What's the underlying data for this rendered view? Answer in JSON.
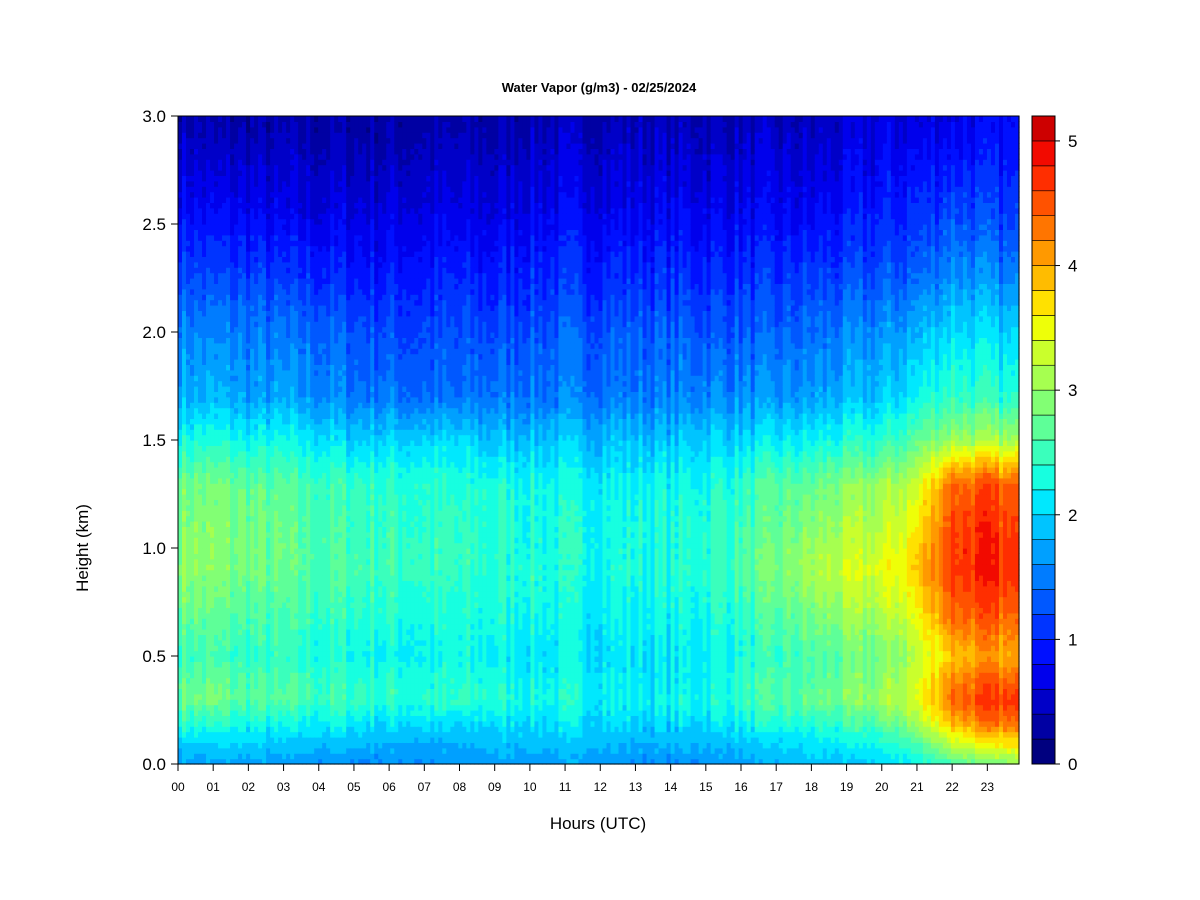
{
  "chart_data": {
    "type": "heatmap",
    "title": "Water Vapor (g/m3) - 02/25/2024",
    "xlabel": "Hours (UTC)",
    "ylabel": "Height (km)",
    "x_ticks": [
      "00",
      "01",
      "02",
      "03",
      "04",
      "05",
      "06",
      "07",
      "08",
      "09",
      "10",
      "11",
      "12",
      "13",
      "14",
      "15",
      "16",
      "17",
      "18",
      "19",
      "20",
      "21",
      "22",
      "23"
    ],
    "y_ticks": [
      "0.0",
      "0.5",
      "1.0",
      "1.5",
      "2.0",
      "2.5",
      "3.0"
    ],
    "xlim": [
      0,
      23.9
    ],
    "ylim": [
      0,
      3.0
    ],
    "colorbar": {
      "range": [
        0,
        5.2
      ],
      "step": 0.2,
      "tick_labels": [
        "0",
        "1",
        "2",
        "3",
        "4",
        "5"
      ],
      "colors": [
        "#00007f",
        "#0000a3",
        "#0000c8",
        "#0000ec",
        "#0010ff",
        "#0034ff",
        "#0058ff",
        "#007cff",
        "#00a0ff",
        "#00c4ff",
        "#00e8fe",
        "#17ffe0",
        "#3affbc",
        "#5eff98",
        "#82ff74",
        "#a6ff50",
        "#caff2c",
        "#eeff08",
        "#ffe100",
        "#ffbc00",
        "#ff9900",
        "#ff7500",
        "#ff5200",
        "#ff2e00",
        "#f20a00",
        "#cd0000",
        "#a80000"
      ]
    },
    "hours": [
      0,
      1,
      2,
      3,
      4,
      5,
      6,
      7,
      8,
      9,
      10,
      11,
      12,
      13,
      14,
      15,
      16,
      17,
      18,
      19,
      20,
      21,
      22,
      23,
      23.9
    ],
    "heights_km": [
      0.0,
      0.1,
      0.2,
      0.3,
      0.4,
      0.5,
      0.7,
      0.9,
      1.1,
      1.3,
      1.5,
      1.7,
      2.0,
      2.3,
      2.6,
      3.0
    ],
    "values": [
      [
        1.7,
        1.7,
        1.7,
        1.7,
        1.6,
        1.6,
        1.6,
        1.6,
        1.6,
        1.7,
        1.7,
        1.7,
        1.7,
        1.6,
        1.6,
        1.6,
        1.7,
        1.8,
        1.9,
        1.9,
        2.0,
        2.2,
        2.6,
        2.8,
        2.9
      ],
      [
        2.0,
        2.0,
        2.0,
        1.9,
        1.9,
        1.9,
        1.8,
        1.8,
        1.8,
        1.9,
        1.9,
        1.9,
        1.9,
        1.8,
        1.8,
        1.9,
        1.9,
        2.0,
        2.1,
        2.2,
        2.3,
        2.6,
        3.3,
        3.6,
        3.7
      ],
      [
        2.4,
        2.4,
        2.3,
        2.2,
        2.2,
        2.2,
        2.1,
        2.1,
        2.0,
        2.1,
        2.1,
        2.1,
        2.1,
        2.0,
        2.0,
        2.1,
        2.2,
        2.3,
        2.4,
        2.5,
        2.7,
        3.1,
        4.0,
        4.3,
        4.3
      ],
      [
        2.8,
        2.8,
        2.6,
        2.6,
        2.5,
        2.5,
        2.4,
        2.4,
        2.4,
        2.4,
        2.3,
        2.3,
        2.2,
        2.2,
        2.2,
        2.3,
        2.4,
        2.6,
        2.7,
        2.8,
        3.0,
        3.4,
        4.4,
        4.6,
        4.6
      ],
      [
        2.7,
        2.7,
        2.6,
        2.5,
        2.5,
        2.4,
        2.4,
        2.3,
        2.3,
        2.3,
        2.2,
        2.2,
        2.2,
        2.1,
        2.1,
        2.2,
        2.4,
        2.5,
        2.6,
        2.8,
        2.9,
        3.3,
        4.2,
        4.4,
        4.3
      ],
      [
        2.5,
        2.5,
        2.4,
        2.4,
        2.3,
        2.3,
        2.2,
        2.2,
        2.2,
        2.2,
        2.1,
        2.1,
        2.1,
        2.1,
        2.1,
        2.2,
        2.3,
        2.4,
        2.6,
        2.7,
        2.8,
        3.2,
        3.9,
        4.0,
        3.9
      ],
      [
        2.8,
        2.7,
        2.6,
        2.5,
        2.5,
        2.4,
        2.4,
        2.3,
        2.3,
        2.3,
        2.3,
        2.2,
        2.2,
        2.2,
        2.2,
        2.3,
        2.4,
        2.6,
        2.8,
        3.0,
        3.1,
        3.5,
        4.4,
        4.5,
        4.3
      ],
      [
        3.0,
        2.9,
        2.8,
        2.7,
        2.6,
        2.6,
        2.5,
        2.5,
        2.4,
        2.4,
        2.4,
        2.3,
        2.3,
        2.3,
        2.3,
        2.4,
        2.6,
        2.8,
        3.1,
        3.3,
        3.4,
        3.8,
        4.7,
        4.8,
        4.6
      ],
      [
        2.9,
        2.9,
        2.8,
        2.7,
        2.6,
        2.5,
        2.5,
        2.4,
        2.4,
        2.4,
        2.3,
        2.3,
        2.3,
        2.3,
        2.3,
        2.4,
        2.5,
        2.7,
        2.9,
        3.1,
        3.2,
        3.6,
        4.6,
        4.7,
        4.5
      ],
      [
        2.8,
        2.8,
        2.7,
        2.6,
        2.5,
        2.5,
        2.4,
        2.4,
        2.3,
        2.3,
        2.3,
        2.2,
        2.2,
        2.2,
        2.2,
        2.3,
        2.4,
        2.6,
        2.7,
        2.9,
        3.0,
        3.3,
        4.4,
        4.5,
        4.3
      ],
      [
        2.3,
        2.3,
        2.2,
        2.2,
        2.1,
        2.0,
        2.0,
        2.0,
        2.0,
        1.9,
        1.9,
        1.9,
        1.9,
        1.9,
        1.9,
        2.0,
        2.0,
        2.1,
        2.2,
        2.3,
        2.4,
        2.7,
        3.1,
        3.1,
        3.0
      ],
      [
        1.8,
        1.8,
        1.7,
        1.7,
        1.6,
        1.5,
        1.5,
        1.4,
        1.4,
        1.5,
        1.5,
        1.5,
        1.5,
        1.5,
        1.5,
        1.6,
        1.6,
        1.6,
        1.7,
        1.8,
        1.9,
        2.2,
        2.5,
        2.4,
        2.3
      ],
      [
        1.6,
        1.5,
        1.5,
        1.4,
        1.4,
        1.3,
        1.2,
        1.2,
        1.2,
        1.2,
        1.3,
        1.3,
        1.3,
        1.3,
        1.3,
        1.3,
        1.3,
        1.3,
        1.4,
        1.5,
        1.6,
        1.8,
        2.1,
        2.0,
        1.9
      ],
      [
        1.2,
        1.1,
        1.1,
        1.0,
        1.0,
        0.9,
        0.9,
        0.9,
        0.9,
        0.9,
        1.0,
        1.0,
        1.0,
        1.0,
        1.0,
        1.0,
        1.0,
        1.0,
        1.1,
        1.1,
        1.2,
        1.3,
        1.6,
        1.5,
        1.4
      ],
      [
        0.8,
        0.7,
        0.7,
        0.6,
        0.6,
        0.6,
        0.6,
        0.6,
        0.6,
        0.6,
        0.7,
        0.7,
        0.7,
        0.7,
        0.7,
        0.7,
        0.7,
        0.7,
        0.7,
        0.8,
        0.9,
        1.0,
        1.2,
        1.1,
        1.0
      ],
      [
        0.4,
        0.3,
        0.3,
        0.3,
        0.3,
        0.3,
        0.3,
        0.3,
        0.3,
        0.3,
        0.4,
        0.4,
        0.4,
        0.4,
        0.4,
        0.4,
        0.4,
        0.4,
        0.4,
        0.5,
        0.6,
        0.6,
        0.7,
        0.7,
        0.7
      ]
    ]
  },
  "colors": {
    "background": "#ffffff",
    "axis": "#000000"
  }
}
